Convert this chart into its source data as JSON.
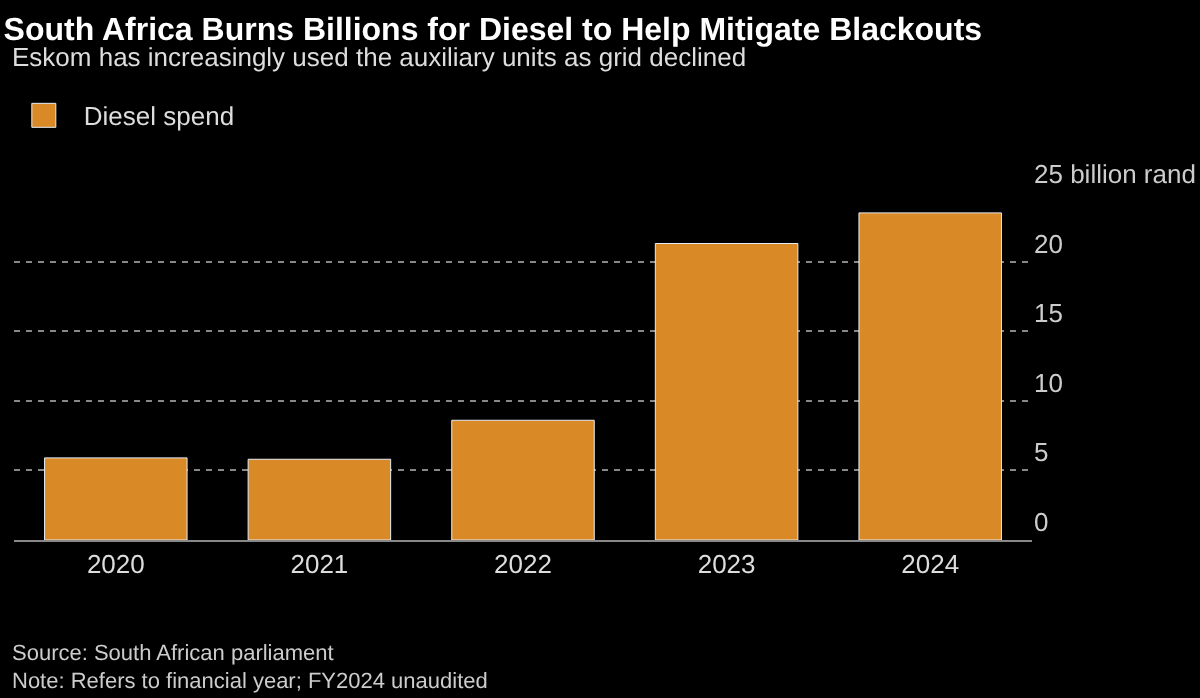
{
  "chart_data": {
    "type": "bar",
    "title": "South Africa Burns Billions for Diesel to Help Mitigate Blackouts",
    "subtitle": "Eskom has increasingly used the auxiliary units as grid declined",
    "categories": [
      "2020",
      "2021",
      "2022",
      "2023",
      "2024"
    ],
    "series": [
      {
        "name": "Diesel spend",
        "color": "#d98a26",
        "values": [
          5.9,
          5.8,
          8.6,
          21.3,
          23.5
        ]
      }
    ],
    "ylim": [
      0,
      25
    ],
    "yticks": [
      0,
      5,
      10,
      15,
      20,
      {
        "value": 25,
        "label": "25 billion rand"
      }
    ],
    "grid": "y",
    "legend": "top left",
    "annotations": [
      "Source: South African parliament",
      "Note: Refers to financial year; FY2024 unaudited"
    ]
  }
}
